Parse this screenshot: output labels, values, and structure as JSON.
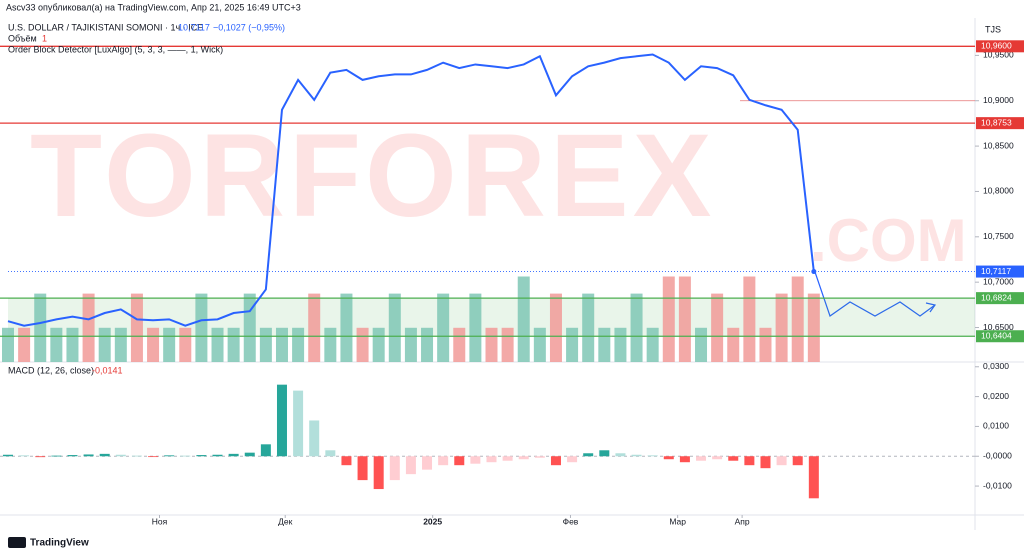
{
  "header": {
    "byline": "Ascv33 опубликовал(а) на TradingView.com, Апр 21, 2025 16:49 UTC+3",
    "footer": "TradingView",
    "currency": "TJS"
  },
  "chart_data": [
    {
      "type": "line",
      "title": "U.S. DOLLAR / TAJIKISTANI SOMONI · 1ч · ICE",
      "last": "10,7117",
      "change": "−0,1027 (−0,95%)",
      "annotations": [
        "Объём",
        "1",
        "Order Block Detector [LuxAlgo] (5, 3, 3, ——, 1, Wick)",
        "TORFOREX",
        ".COM"
      ],
      "color": "#2962ff",
      "x": [
        0,
        2,
        4,
        6,
        8,
        10,
        12,
        14,
        16,
        18,
        20,
        22,
        24,
        26,
        28,
        30,
        32,
        34,
        36,
        38,
        40,
        42,
        44,
        46,
        48,
        50,
        52,
        54,
        56,
        58,
        60,
        62,
        64,
        66,
        68,
        70,
        72,
        74,
        76,
        78,
        80,
        82,
        84,
        86,
        88,
        90,
        92,
        94,
        96,
        98,
        100
      ],
      "values": [
        10.657,
        10.652,
        10.655,
        10.659,
        10.662,
        10.659,
        10.666,
        10.67,
        10.659,
        10.658,
        10.659,
        10.652,
        10.658,
        10.659,
        10.666,
        10.668,
        10.692,
        10.89,
        10.923,
        10.901,
        10.931,
        10.934,
        10.923,
        10.927,
        10.929,
        10.929,
        10.934,
        10.942,
        10.936,
        10.94,
        10.938,
        10.936,
        10.94,
        10.949,
        10.906,
        10.927,
        10.938,
        10.942,
        10.947,
        10.949,
        10.951,
        10.942,
        10.923,
        10.938,
        10.936,
        10.928,
        10.901,
        10.895,
        10.89,
        10.868,
        10.7117
      ],
      "xlim": [
        0,
        120
      ],
      "ylim": [
        10.612,
        10.989
      ],
      "yticks": [
        {
          "value": 10.95,
          "label": "10,9500"
        },
        {
          "value": 10.9,
          "label": "10,9000"
        },
        {
          "value": 10.85,
          "label": "10,8500"
        },
        {
          "value": 10.8,
          "label": "10,8000"
        },
        {
          "value": 10.75,
          "label": "10,7500"
        },
        {
          "value": 10.7,
          "label": "10,7000"
        },
        {
          "value": 10.65,
          "label": "10,6500"
        }
      ],
      "levels": [
        {
          "value": 10.96,
          "label": "10,9600",
          "color": "#e53935"
        },
        {
          "value": 10.9,
          "color": "#e57373"
        },
        {
          "value": 10.8753,
          "label": "10,8753",
          "color": "#e53935"
        },
        {
          "value": 10.7117,
          "label": "10,7117",
          "color": "#2962ff"
        },
        {
          "value": 10.6824,
          "label": "10,6824",
          "color": "#4caf50"
        },
        {
          "value": 10.6404,
          "label": "10,6404",
          "color": "#4caf50"
        }
      ],
      "zones": [
        {
          "from": 10.6404,
          "to": 10.6824,
          "color": "#4caf50"
        }
      ]
    },
    {
      "type": "volume",
      "colors": {
        "up": "#7fc7b5",
        "down": "#f19a98"
      },
      "ylim": [
        0,
        10
      ],
      "values": [
        1,
        1,
        2,
        1,
        1,
        2,
        1,
        1,
        2,
        1,
        1,
        1,
        2,
        1,
        1,
        2,
        1,
        1,
        1,
        2,
        1,
        2,
        1,
        1,
        2,
        1,
        1,
        2,
        1,
        2,
        1,
        1,
        2.5,
        1,
        2,
        1,
        2,
        1,
        1,
        2,
        1,
        2.5,
        2.5,
        1,
        2,
        1,
        2.5,
        1,
        2,
        2.5,
        2
      ]
    },
    {
      "type": "macd",
      "title": "MACD (12, 26, close)",
      "last_value": -0.0141,
      "last_value_label": "-0,0141",
      "colors": {
        "up_rising": "#26a69a",
        "up_falling": "#b2dfdb",
        "down_falling": "#ff5252",
        "down_rising": "#ffcdd2"
      },
      "values": [
        0.0005,
        0.0003,
        -0.0003,
        0.0002,
        0.0004,
        0.0006,
        0.0008,
        0.0005,
        0.0002,
        -0.0002,
        0.0003,
        0.0002,
        0.0004,
        0.0005,
        0.0008,
        0.0012,
        0.004,
        0.024,
        0.022,
        0.012,
        0.002,
        -0.003,
        -0.008,
        -0.011,
        -0.008,
        -0.006,
        -0.0045,
        -0.003,
        -0.003,
        -0.0025,
        -0.002,
        -0.0015,
        -0.001,
        -0.0005,
        -0.003,
        -0.002,
        0.001,
        0.002,
        0.001,
        0.0005,
        0.0003,
        -0.001,
        -0.002,
        -0.0015,
        -0.001,
        -0.0015,
        -0.003,
        -0.004,
        -0.003,
        -0.003,
        -0.0141
      ],
      "ylim": [
        -0.0197,
        0.0316
      ],
      "yticks": [
        {
          "value": 0.03,
          "label": "0,0300"
        },
        {
          "value": 0.02,
          "label": "0,0200"
        },
        {
          "value": 0.01,
          "label": "0,0100"
        },
        {
          "value": 0,
          "label": "-0,0000"
        },
        {
          "value": -0.01,
          "label": "-0,0100"
        }
      ],
      "xlim": [
        0,
        120
      ],
      "xticks": [
        {
          "value": 18.8,
          "label": "Ноя"
        },
        {
          "value": 34.4,
          "label": "Дек"
        },
        {
          "value": 52.7,
          "label": "2025"
        },
        {
          "value": 69.8,
          "label": "Фев"
        },
        {
          "value": 83.1,
          "label": "Мар"
        },
        {
          "value": 91.1,
          "label": "Апр"
        }
      ]
    }
  ]
}
